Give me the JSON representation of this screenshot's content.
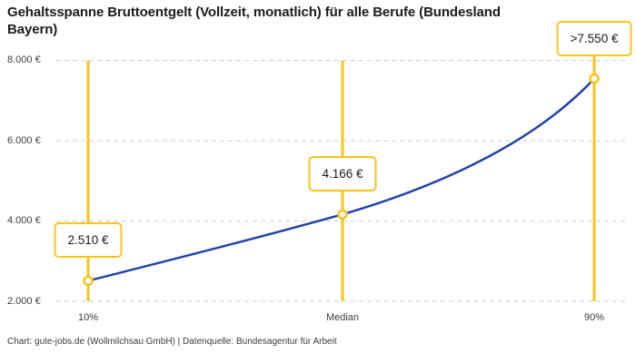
{
  "title": "Gehaltsspanne Bruttoentgelt (Vollzeit, monatlich) für alle Berufe (Bundesland Bayern)",
  "footer": "Chart: gute-jobs.de (Wollmilchsau GmbH) | Datenquelle: Bundesagentur für Arbeit",
  "chart_data": {
    "type": "line",
    "title": "Gehaltsspanne Bruttoentgelt (Vollzeit, monatlich) für alle Berufe (Bundesland Bayern)",
    "categories": [
      "10%",
      "Median",
      "90%"
    ],
    "points": [
      {
        "label": "10%",
        "value": 2510,
        "display": "2.510 €"
      },
      {
        "label": "Median",
        "value": 4166,
        "display": "4.166 €"
      },
      {
        "label": "90%",
        "value": 7550,
        "display": ">7.550 €"
      }
    ],
    "y_ticks": [
      {
        "value": 2000,
        "label": "2.000 €"
      },
      {
        "value": 4000,
        "label": "4.000 €"
      },
      {
        "value": 6000,
        "label": "6.000 €"
      },
      {
        "value": 8000,
        "label": "8.000 €"
      }
    ],
    "ylim": [
      2000,
      8000
    ],
    "xlabel": "",
    "ylabel": "",
    "grid": "horizontal-dashed",
    "legend": "none",
    "colors": {
      "line": "#2342a8",
      "marker_fill": "#ffffff",
      "marker_stroke": "#fcc31d",
      "vertical_line": "#fcc31d",
      "annotation_border": "#fcc31d",
      "grid": "#cbcbcb",
      "text": "#3c3c3c",
      "title_text": "#1b1b1b"
    }
  }
}
